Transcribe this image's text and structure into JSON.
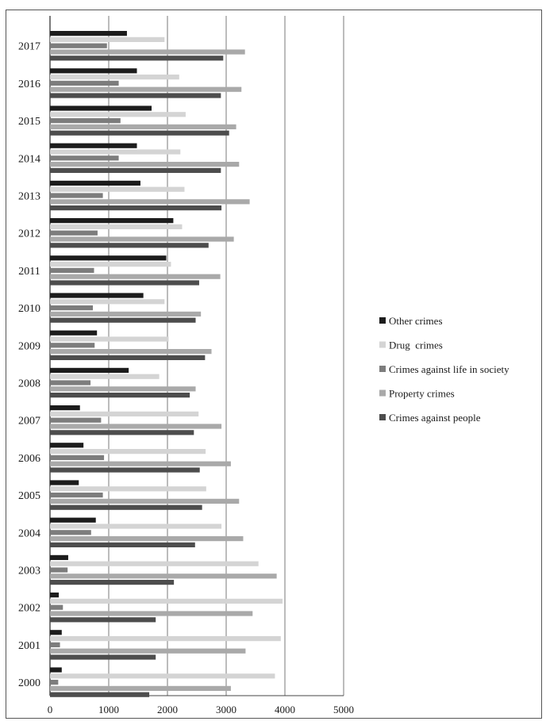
{
  "chart_data": {
    "type": "bar",
    "orientation": "horizontal",
    "title": "",
    "xlabel": "",
    "ylabel": "",
    "xlim": [
      0,
      5000
    ],
    "xticks": [
      "0",
      "1000",
      "2000",
      "3000",
      "4000",
      "5000"
    ],
    "grid": "vertical major gridlines",
    "legend_position": "right",
    "categories": [
      "2017",
      "2016",
      "2015",
      "2014",
      "2013",
      "2012",
      "2011",
      "2010",
      "2009",
      "2008",
      "2007",
      "2006",
      "2005",
      "2004",
      "2003",
      "2002",
      "2001",
      "2000"
    ],
    "series": [
      {
        "name": "Other crimes",
        "color": "#1c1c1c",
        "values": [
          1310,
          1480,
          1730,
          1480,
          1540,
          2100,
          1980,
          1590,
          800,
          1340,
          510,
          570,
          490,
          780,
          310,
          150,
          200,
          200
        ]
      },
      {
        "name": "Drug  crimes",
        "color": "#d4d4d4",
        "values": [
          1950,
          2200,
          2310,
          2220,
          2290,
          2250,
          2060,
          1950,
          2020,
          1860,
          2530,
          2650,
          2660,
          2920,
          3550,
          3960,
          3930,
          3830
        ]
      },
      {
        "name": "Crimes against life in society",
        "color": "#7d7d7d",
        "values": [
          970,
          1170,
          1200,
          1170,
          900,
          810,
          750,
          730,
          760,
          690,
          870,
          920,
          900,
          700,
          300,
          220,
          170,
          140
        ]
      },
      {
        "name": "Property crimes",
        "color": "#a9a9a9",
        "values": [
          3320,
          3260,
          3170,
          3220,
          3400,
          3130,
          2900,
          2570,
          2750,
          2480,
          2920,
          3080,
          3220,
          3290,
          3860,
          3450,
          3330,
          3080
        ]
      },
      {
        "name": "Crimes against people",
        "color": "#4d4d4d",
        "values": [
          2950,
          2910,
          3050,
          2910,
          2920,
          2700,
          2540,
          2480,
          2640,
          2380,
          2450,
          2550,
          2590,
          2470,
          2110,
          1800,
          1800,
          1690
        ]
      }
    ]
  }
}
